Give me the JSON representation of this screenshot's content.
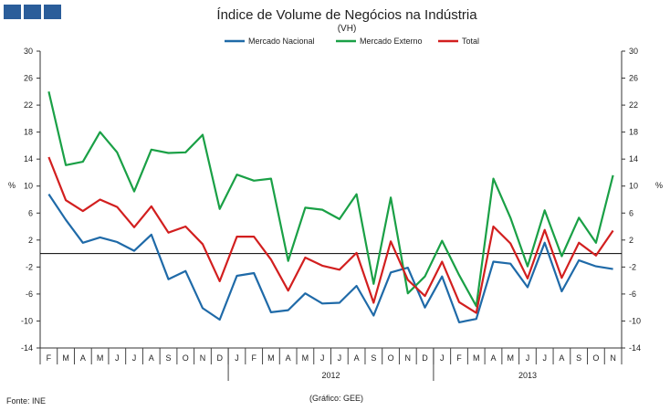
{
  "brand": {
    "name": "logo-blocks"
  },
  "footer": {
    "source": "Fonte: INE",
    "credit": "(Gráfico: GEE)"
  },
  "chart_data": {
    "type": "line",
    "title": "Índice de Volume de Negócios na Indústria",
    "subtitle": "(VH)",
    "ylabel": "%",
    "ylim": [
      -14,
      30
    ],
    "yticks": [
      -14,
      -10,
      -6,
      -2,
      2,
      6,
      10,
      14,
      18,
      22,
      26,
      30
    ],
    "ytick_labels": [
      "-14",
      "-10",
      "-6",
      "-2",
      "2",
      "6",
      "10",
      "14",
      "18",
      "22",
      "26",
      "30"
    ],
    "month_labels": [
      "F",
      "M",
      "A",
      "M",
      "J",
      "J",
      "A",
      "S",
      "O",
      "N",
      "D",
      "J",
      "F",
      "M",
      "A",
      "M",
      "J",
      "J",
      "A",
      "S",
      "O",
      "N",
      "D",
      "J",
      "F",
      "M",
      "A",
      "M",
      "J",
      "J",
      "A",
      "S",
      "O",
      "N"
    ],
    "years": [
      {
        "label": "2012",
        "start": 11,
        "end": 22
      },
      {
        "label": "2013",
        "start": 23,
        "end": 33
      }
    ],
    "year_dividers": [
      11,
      23
    ],
    "legend_position": "top-center",
    "series": [
      {
        "name": "Mercado Nacional",
        "color": "#1f6aa8",
        "values": [
          8.8,
          5.0,
          1.6,
          2.4,
          1.7,
          0.4,
          2.8,
          -3.8,
          -2.6,
          -8.1,
          -9.8,
          -3.3,
          -2.9,
          -8.7,
          -8.4,
          -5.9,
          -7.4,
          -7.3,
          -4.8,
          -9.2,
          -2.8,
          -2.1,
          -8.0,
          -3.4,
          -10.2,
          -9.7,
          -1.2,
          -1.5,
          -5.0,
          1.6,
          -5.6,
          -1.0,
          -1.9,
          -2.3
        ]
      },
      {
        "name": "Mercado Externo",
        "color": "#1aa046",
        "values": [
          24.0,
          13.1,
          13.6,
          18.0,
          15.0,
          9.2,
          15.4,
          14.9,
          15.0,
          17.6,
          6.6,
          11.7,
          10.8,
          11.1,
          -1.1,
          6.8,
          6.5,
          5.1,
          8.8,
          -4.5,
          8.3,
          -5.9,
          -3.4,
          1.9,
          -3.2,
          -7.8,
          11.1,
          5.3,
          -1.9,
          6.4,
          -0.4,
          5.3,
          1.6,
          11.6
        ]
      },
      {
        "name": "Total",
        "color": "#d21f1f",
        "values": [
          14.3,
          7.9,
          6.3,
          8.0,
          6.9,
          3.9,
          7.0,
          3.1,
          4.0,
          1.4,
          -4.1,
          2.5,
          2.5,
          -0.9,
          -5.5,
          -0.6,
          -1.8,
          -2.4,
          0.1,
          -7.3,
          1.8,
          -3.9,
          -6.3,
          -1.2,
          -7.2,
          -8.8,
          4.0,
          1.5,
          -3.7,
          3.5,
          -3.6,
          1.6,
          -0.3,
          3.4
        ]
      }
    ]
  }
}
